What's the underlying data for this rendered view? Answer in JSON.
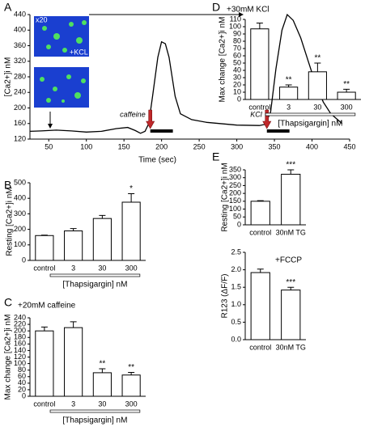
{
  "chart_data": [
    {
      "type": "line",
      "panel": "A",
      "ylabel": "[Ca2+]i nM",
      "xlabel": "Time (sec)",
      "x": [
        25,
        40,
        60,
        80,
        100,
        120,
        140,
        155,
        165,
        172,
        178,
        183,
        188,
        195,
        200,
        205,
        210,
        218,
        225,
        240,
        260,
        300,
        330,
        338,
        345,
        352,
        360,
        367,
        375,
        385,
        395,
        405,
        415,
        425,
        440
      ],
      "values": [
        140,
        141,
        143,
        141,
        138,
        140,
        147,
        150,
        142,
        135,
        140,
        160,
        230,
        330,
        370,
        365,
        330,
        230,
        185,
        170,
        163,
        156,
        155,
        158,
        190,
        300,
        400,
        440,
        425,
        380,
        320,
        260,
        215,
        185,
        160
      ],
      "color": "#000000",
      "xlim": [
        25,
        450
      ],
      "xticks": [
        50,
        100,
        150,
        200,
        250,
        300,
        350,
        400,
        450
      ],
      "ylim": [
        120,
        440
      ],
      "yticks": [
        120,
        160,
        200,
        240,
        280,
        320,
        360,
        400,
        440
      ],
      "stimuli": [
        {
          "label": "caffeine",
          "start": 185,
          "end": 215
        },
        {
          "label": "KCl",
          "start": 340,
          "end": 370
        }
      ],
      "inset_labels": [
        "x20",
        "+KCL"
      ]
    },
    {
      "type": "bar",
      "panel": "B",
      "ylabel": "Resting [Ca2+]i nM",
      "xlabel": "[Thapsigargin] nM",
      "categories": [
        "control",
        "3",
        "30",
        "300"
      ],
      "values": [
        160,
        190,
        270,
        375
      ],
      "errors": [
        3,
        15,
        20,
        55
      ],
      "significance": [
        null,
        null,
        null,
        "*"
      ],
      "color": "#ffffff",
      "ylim": [
        0,
        500
      ],
      "yticks": [
        0,
        100,
        200,
        300,
        400,
        500
      ]
    },
    {
      "type": "bar",
      "panel": "C",
      "title": "+20mM caffeine",
      "ylabel": "Max change [Ca2+]i nM",
      "xlabel": "[Thapsigargin] nM",
      "categories": [
        "control",
        "3",
        "30",
        "300"
      ],
      "values": [
        200,
        210,
        72,
        65
      ],
      "errors": [
        12,
        18,
        12,
        8
      ],
      "significance": [
        null,
        null,
        "**",
        "**"
      ],
      "color": "#ffffff",
      "ylim": [
        0,
        240
      ],
      "yticks": [
        0,
        20,
        40,
        60,
        80,
        100,
        120,
        140,
        160,
        180,
        200,
        220,
        240
      ]
    },
    {
      "type": "bar",
      "panel": "D",
      "title": "+30mM KCl",
      "ylabel": "Max change [Ca2+]i nM",
      "xlabel": "[Thapsigargin] nM",
      "categories": [
        "control",
        "3",
        "30",
        "300"
      ],
      "values": [
        97,
        17,
        38,
        10
      ],
      "errors": [
        8,
        3,
        12,
        4
      ],
      "significance": [
        null,
        "**",
        "**",
        "**"
      ],
      "color": "#ffffff",
      "ylim": [
        0,
        110
      ],
      "yticks": [
        0,
        10,
        20,
        30,
        40,
        50,
        60,
        70,
        80,
        90,
        100,
        110
      ]
    },
    {
      "type": "bar",
      "panel": "E",
      "ylabel": "Resting [Ca2+]i nM",
      "categories": [
        "control",
        "30nM TG"
      ],
      "values": [
        150,
        322
      ],
      "errors": [
        4,
        28
      ],
      "significance": [
        null,
        "***"
      ],
      "color": "#ffffff",
      "ylim": [
        0,
        350
      ],
      "yticks": [
        0,
        50,
        100,
        150,
        200,
        250,
        300,
        350
      ]
    },
    {
      "type": "bar",
      "title": "+FCCP",
      "ylabel": "R123 (ΔF/F)",
      "categories": [
        "control",
        "30nM TG"
      ],
      "values": [
        1.92,
        1.42
      ],
      "errors": [
        0.1,
        0.08
      ],
      "significance": [
        null,
        "***"
      ],
      "color": "#ffffff",
      "ylim": [
        0,
        2.5
      ],
      "yticks": [
        {
          "value": 0,
          "label": "0.0"
        },
        0.5,
        {
          "value": 1,
          "label": "1.0"
        },
        1.5,
        {
          "value": 2,
          "label": "2.0"
        },
        2.5
      ]
    }
  ]
}
